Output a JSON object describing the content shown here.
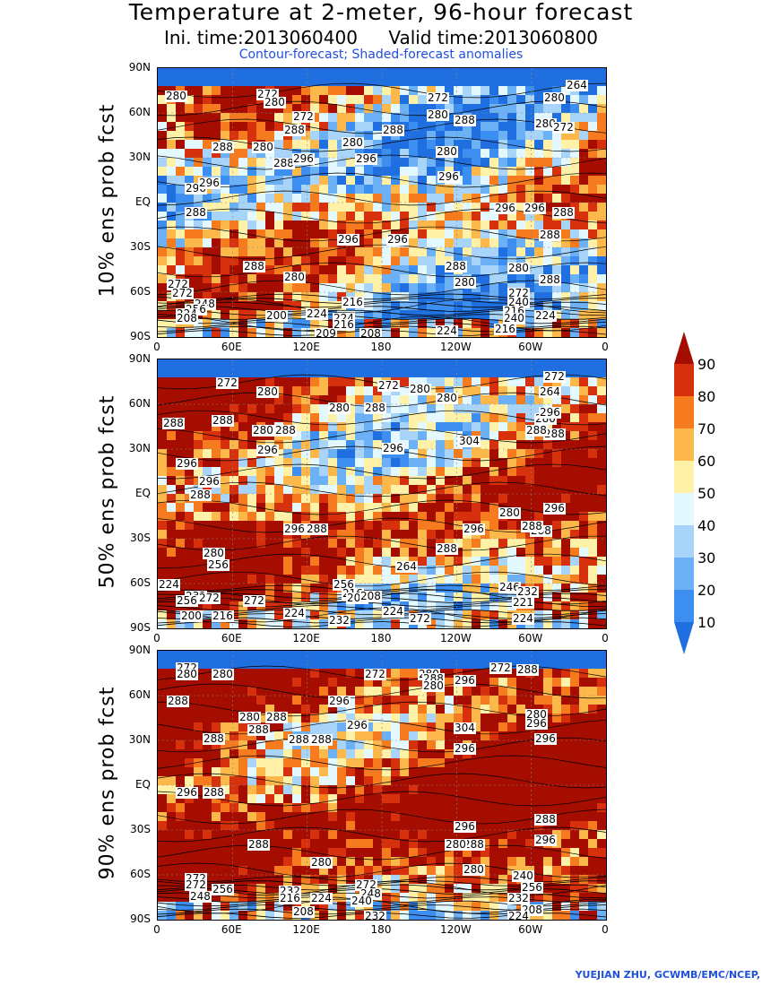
{
  "title": "Temperature at 2-meter, 96-hour forecast",
  "ini_time": "Ini. time:2013060400",
  "valid_time": "Valid time:2013060800",
  "caption": "Contour-forecast; Shaded-forecast anomalies",
  "credit": "YUEJIAN ZHU, GCWMB/EMC/NCEP,",
  "lat_ticks": [
    "90N",
    "60N",
    "30N",
    "EQ",
    "30S",
    "60S",
    "90S"
  ],
  "lon_ticks": [
    "0",
    "60E",
    "120E",
    "180",
    "120W",
    "60W",
    "0"
  ],
  "colorbar": {
    "ticks": [
      "10",
      "20",
      "30",
      "40",
      "50",
      "60",
      "70",
      "80",
      "90"
    ],
    "colors": [
      "#1f6fe0",
      "#3c8ef0",
      "#6cb0f5",
      "#a8d4fa",
      "#e4f8ff",
      "#fff2a8",
      "#fcb84a",
      "#f57b1e",
      "#d6300c",
      "#a40d00"
    ]
  },
  "panels": [
    {
      "ylabel": "10% ens prob fcst",
      "labels": [
        "280",
        "272",
        "280",
        "272",
        "280",
        "264",
        "272",
        "280",
        "288",
        "280",
        "288",
        "280",
        "288",
        "280",
        "288",
        "280",
        "296",
        "272",
        "288",
        "296",
        "296",
        "296",
        "296",
        "296",
        "296",
        "288",
        "288",
        "296",
        "296",
        "288",
        "288",
        "288",
        "280",
        "280",
        "288",
        "280",
        "272",
        "272",
        "248",
        "256",
        "224",
        "208",
        "216",
        "200",
        "224",
        "224",
        "216",
        "209",
        "208",
        "224",
        "272",
        "240",
        "216",
        "240",
        "224",
        "216"
      ]
    },
    {
      "ylabel": "50% ens prob fcst",
      "labels": [
        "272",
        "280",
        "272",
        "280",
        "272",
        "264",
        "288",
        "288",
        "280",
        "288",
        "280",
        "288",
        "280",
        "280",
        "296",
        "288",
        "296",
        "304",
        "288",
        "296",
        "296",
        "296",
        "288",
        "296",
        "280",
        "288",
        "296",
        "296",
        "288",
        "288",
        "288",
        "280",
        "264",
        "256",
        "224",
        "232",
        "256",
        "272",
        "272",
        "256",
        "216",
        "200",
        "208",
        "200",
        "216",
        "224",
        "232",
        "224",
        "272",
        "246",
        "232",
        "221",
        "224"
      ]
    },
    {
      "ylabel": "90% ens prob fcst",
      "labels": [
        "272",
        "280",
        "280",
        "272",
        "280",
        "272",
        "288",
        "288",
        "280",
        "288",
        "288",
        "288",
        "280",
        "296",
        "296",
        "296",
        "288",
        "288",
        "304",
        "296",
        "280",
        "296",
        "296",
        "288",
        "288",
        "296",
        "288",
        "296",
        "296",
        "288",
        "288",
        "280",
        "280",
        "280",
        "272",
        "272",
        "256",
        "248",
        "232",
        "216",
        "224",
        "208",
        "272",
        "248",
        "240",
        "232",
        "240",
        "256",
        "232",
        "208",
        "224"
      ]
    }
  ]
}
